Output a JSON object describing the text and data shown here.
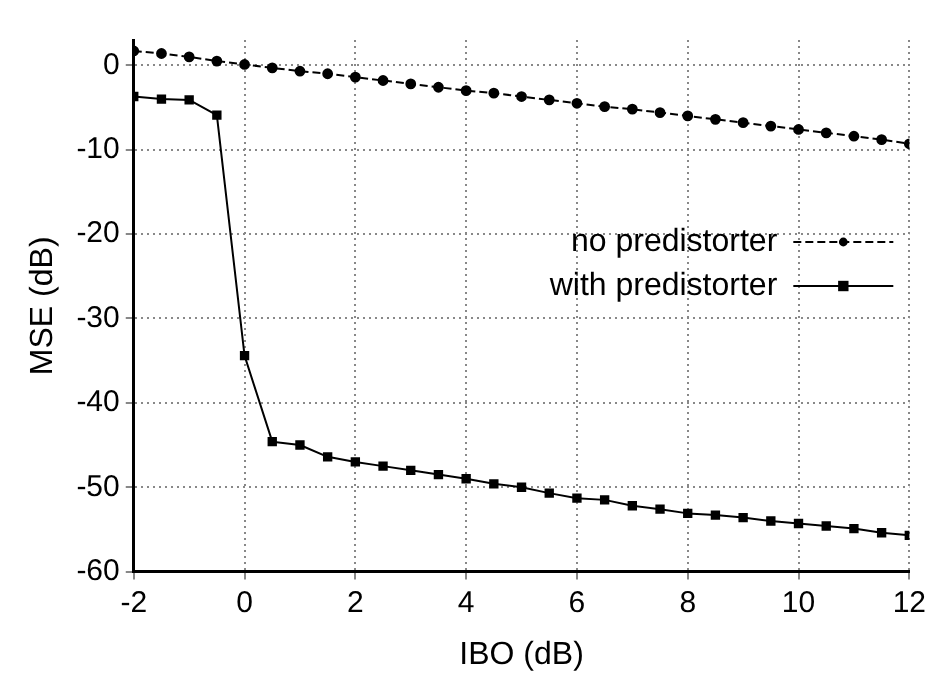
{
  "chart_data": {
    "type": "line",
    "xlabel": "IBO (dB)",
    "ylabel": "MSE (dB)",
    "x": [
      -2,
      -1.5,
      -1,
      -0.5,
      0,
      0.5,
      1,
      1.5,
      2,
      2.5,
      3,
      3.5,
      4,
      4.5,
      5,
      5.5,
      6,
      6.5,
      7,
      7.5,
      8,
      8.5,
      9,
      9.5,
      10,
      10.5,
      11,
      11.5,
      12
    ],
    "series": [
      {
        "name": "no predistorter",
        "color": "#000000",
        "marker": "circle",
        "line_style": "dashed",
        "values": [
          1.7,
          1.4,
          1.0,
          0.5,
          0.1,
          -0.3,
          -0.7,
          -1.0,
          -1.4,
          -1.8,
          -2.2,
          -2.6,
          -3.0,
          -3.3,
          -3.7,
          -4.1,
          -4.5,
          -4.9,
          -5.2,
          -5.6,
          -6.0,
          -6.4,
          -6.8,
          -7.2,
          -7.6,
          -8.0,
          -8.4,
          -8.8,
          -9.3
        ]
      },
      {
        "name": "with predistorter",
        "color": "#000000",
        "marker": "square",
        "line_style": "solid",
        "values": [
          -3.7,
          -4.0,
          -4.1,
          -5.9,
          -34.4,
          -44.6,
          -45,
          -46.4,
          -47,
          -47.5,
          -48,
          -48.5,
          -49,
          -49.6,
          -50,
          -50.7,
          -51.3,
          -51.5,
          -52.2,
          -52.6,
          -53.1,
          -53.3,
          -53.6,
          -54,
          -54.3,
          -54.6,
          -54.9,
          -55.4,
          -55.7
        ]
      }
    ],
    "xlim": [
      -2,
      12
    ],
    "xticks": [
      -2,
      0,
      2,
      4,
      6,
      8,
      10,
      12
    ],
    "ylim": [
      -60,
      3
    ],
    "yticks": [
      -60,
      -50,
      -40,
      -30,
      -20,
      -10,
      0
    ],
    "grid": true,
    "legend": "right"
  }
}
